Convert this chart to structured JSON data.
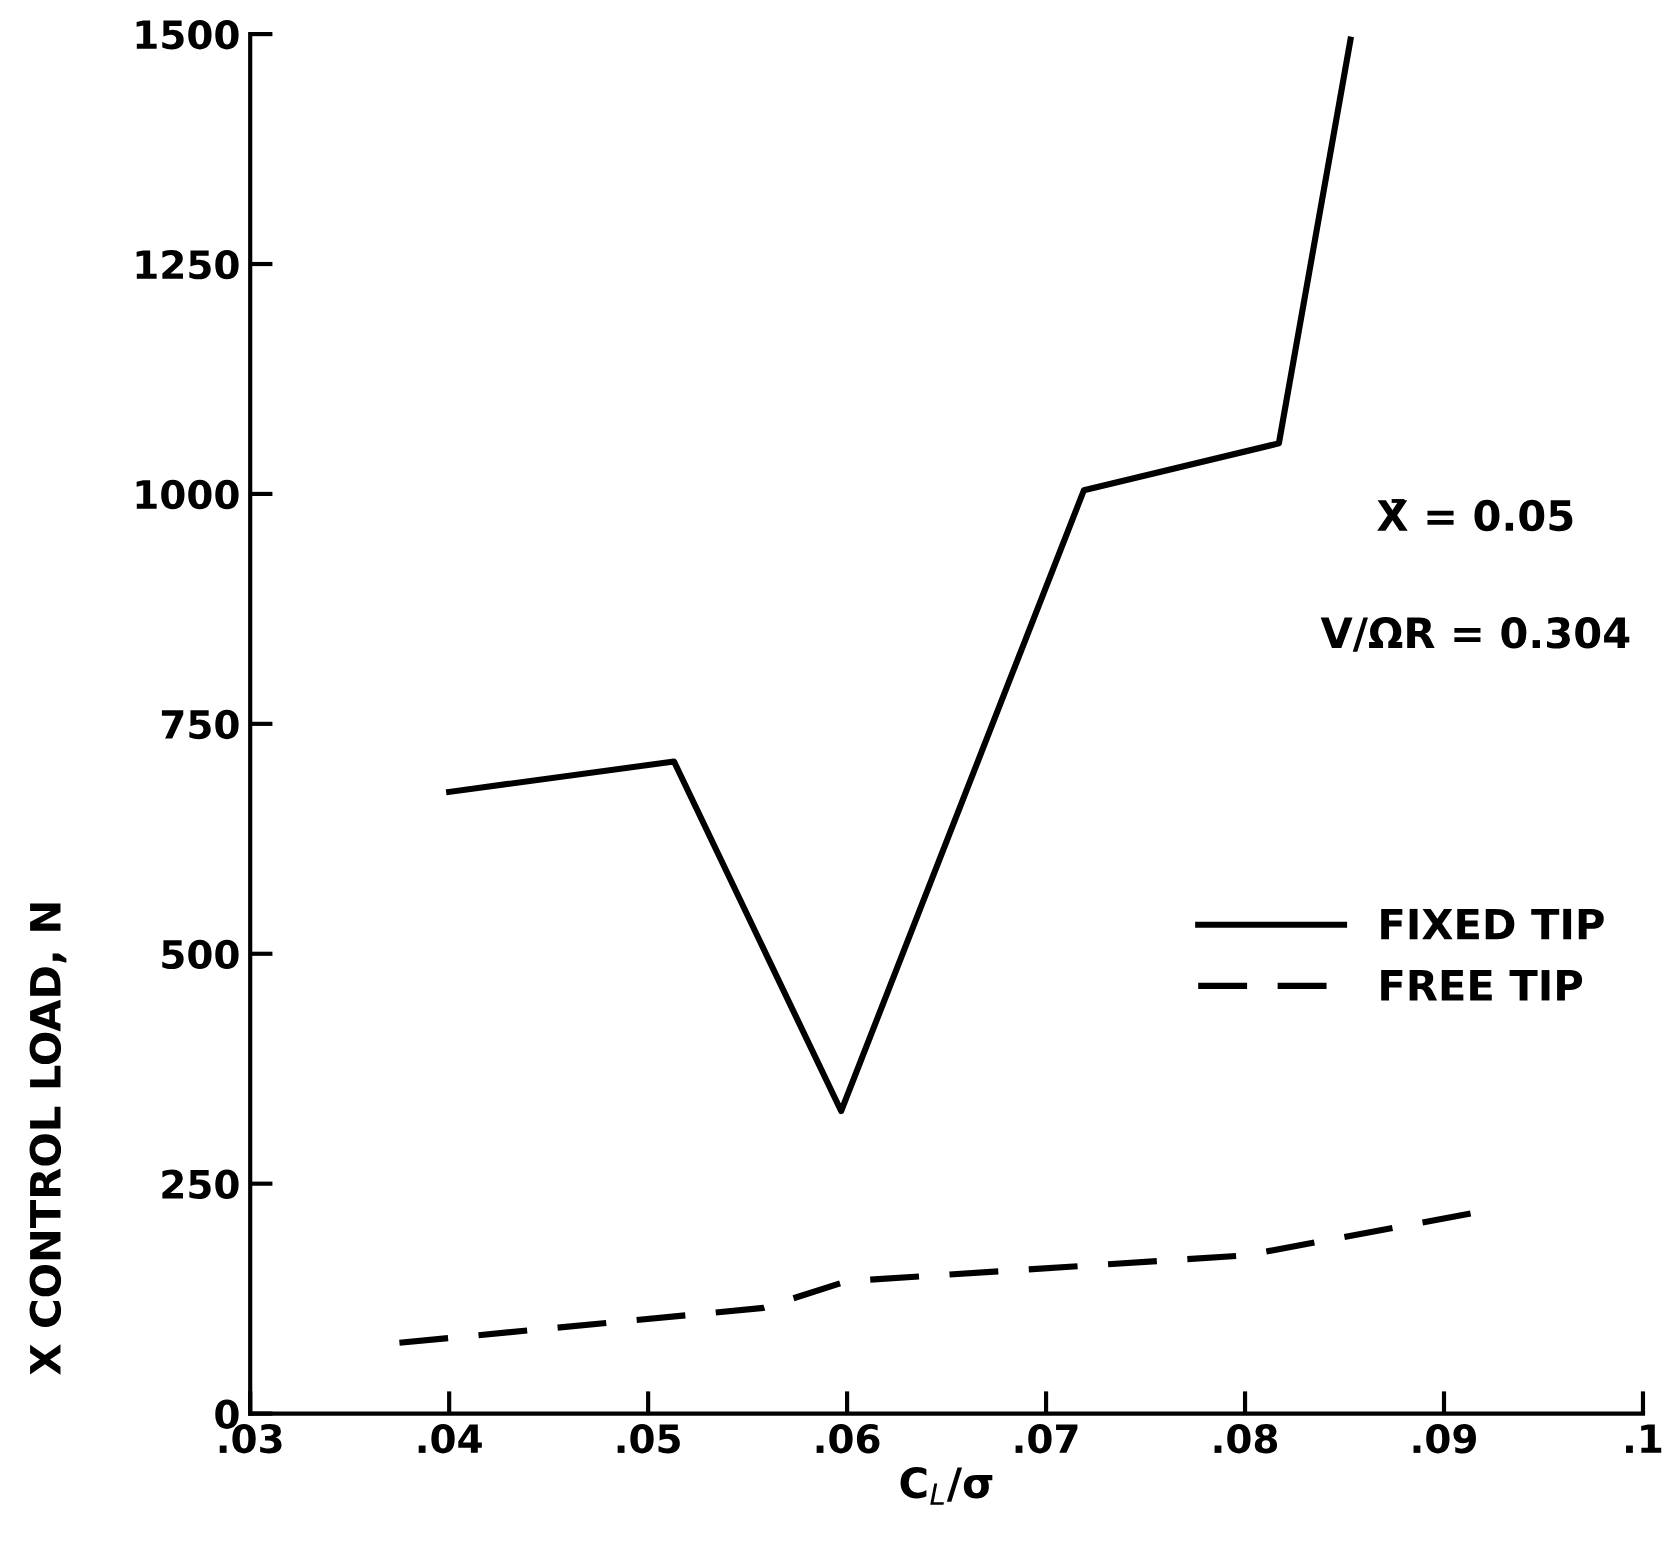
{
  "chart_data": {
    "type": "line",
    "xlabel": "C$_{L}$/σ",
    "ylabel": "X CONTROL LOAD, N",
    "xlim": [
      0.03,
      0.1
    ],
    "xticks": [
      {
        "value": 0.03,
        "label": ".03"
      },
      {
        "value": 0.04,
        "label": ".04"
      },
      {
        "value": 0.05,
        "label": ".05"
      },
      {
        "value": 0.06,
        "label": ".06"
      },
      {
        "value": 0.07,
        "label": ".07"
      },
      {
        "value": 0.08,
        "label": ".08"
      },
      {
        "value": 0.09,
        "label": ".09"
      },
      {
        "value": 0.1,
        "label": ".1"
      }
    ],
    "ylim": [
      0,
      1500
    ],
    "yticks": [
      0,
      250,
      500,
      750,
      1000,
      1250,
      1500
    ],
    "series": [
      {
        "name": "FIXED TIP",
        "color": "#000000",
        "line_style": "solid",
        "x": [
          0.04,
          0.0513,
          0.0597,
          0.0719,
          0.0817,
          0.0853
        ],
        "values": [
          676,
          709,
          329,
          1004,
          1055,
          1494
        ]
      },
      {
        "name": "FREE TIP",
        "color": "#000000",
        "line_style": "dashed",
        "x": [
          0.0375,
          0.0558,
          0.06,
          0.08,
          0.0917
        ],
        "values": [
          77,
          115,
          144,
          172,
          219
        ]
      }
    ],
    "annotations": [
      "X̄ = 0.05",
      "V/ΩR = 0.304"
    ],
    "legend": "center right",
    "grid": false,
    "marker": "none"
  }
}
